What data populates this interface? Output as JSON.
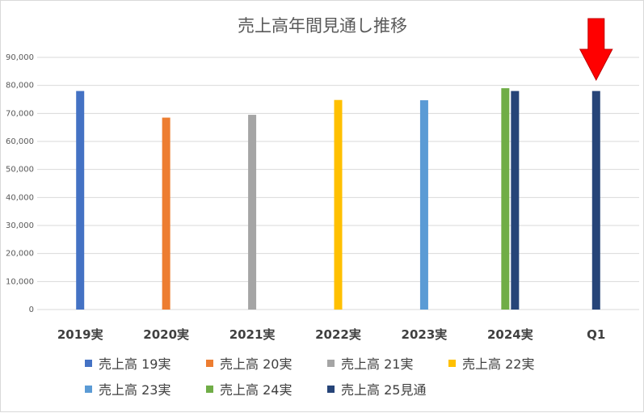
{
  "chart_data": {
    "type": "bar",
    "title": "売上高年間見通し推移",
    "categories": [
      "2019実",
      "2020実",
      "2021実",
      "2022実",
      "2023実",
      "2024実",
      "Q1"
    ],
    "y_ticks": [
      "0",
      "10,000",
      "20,000",
      "30,000",
      "40,000",
      "50,000",
      "60,000",
      "70,000",
      "80,000",
      "90,000"
    ],
    "ylim": [
      0,
      90000
    ],
    "grid": true,
    "legend_position": "bottom",
    "series": [
      {
        "name": "売上高 19実",
        "color": "#4472C4",
        "values": [
          78000,
          null,
          null,
          null,
          null,
          null,
          null
        ]
      },
      {
        "name": "売上高 20実",
        "color": "#ED7D31",
        "values": [
          null,
          68500,
          null,
          null,
          null,
          null,
          null
        ]
      },
      {
        "name": "売上高 21実",
        "color": "#A5A5A5",
        "values": [
          null,
          null,
          69500,
          null,
          null,
          null,
          null
        ]
      },
      {
        "name": "売上高 22実",
        "color": "#FFC000",
        "values": [
          null,
          null,
          null,
          74800,
          null,
          null,
          null
        ]
      },
      {
        "name": "売上高 23実",
        "color": "#5B9BD5",
        "values": [
          null,
          null,
          null,
          null,
          74700,
          null,
          null
        ]
      },
      {
        "name": "売上高 24実",
        "color": "#70AD47",
        "values": [
          null,
          null,
          null,
          null,
          null,
          79000,
          null
        ]
      },
      {
        "name": "売上高 25見通",
        "color": "#264478",
        "values": [
          null,
          null,
          null,
          null,
          null,
          78000,
          78000
        ]
      }
    ],
    "annotation": {
      "type": "arrow",
      "color": "#FF0000",
      "target_category": "Q1"
    }
  }
}
